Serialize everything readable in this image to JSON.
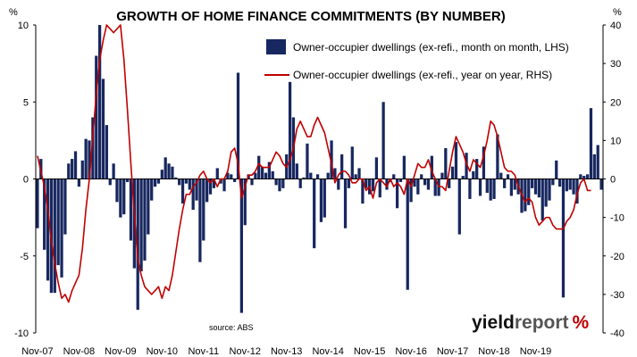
{
  "chart_data": {
    "type": "bar+line",
    "title": "GROWTH OF HOME FINANCE COMMITMENTS (BY NUMBER)",
    "left_axis": {
      "unit": "%",
      "ylim": [
        -10,
        10
      ],
      "ticks": [
        "10",
        "5",
        "0",
        "-5",
        "-10"
      ]
    },
    "right_axis": {
      "unit": "%",
      "ylim": [
        -40,
        40
      ],
      "ticks": [
        "40",
        "30",
        "20",
        "10",
        "0",
        "-10",
        "-20",
        "-30",
        "-40"
      ]
    },
    "x_tick_labels": [
      "Nov-07",
      "Nov-08",
      "Nov-09",
      "Nov-10",
      "Nov-11",
      "Nov-12",
      "Nov-13",
      "Nov-14",
      "Nov-15",
      "Nov-16",
      "Nov-17",
      "Nov-18",
      "Nov-19"
    ],
    "grid": false,
    "legend_position": "top-right",
    "series": [
      {
        "name": "Owner-occupier dwellings (ex-refi., month on month, LHS)",
        "type": "bar",
        "axis": "left",
        "color": "#17275f",
        "start": "Nov-07",
        "frequency": "monthly",
        "values": [
          -3.2,
          1.3,
          -4.6,
          -6.6,
          -7.4,
          -7.4,
          -5.6,
          -6.4,
          -3.6,
          1.0,
          1.3,
          1.8,
          -0.5,
          1.2,
          2.6,
          2.5,
          4.0,
          8.0,
          10.0,
          6.5,
          3.5,
          -0.4,
          1.0,
          -1.5,
          -2.5,
          -2.3,
          -0.2,
          -4.0,
          -5.8,
          -8.5,
          -6.0,
          -5.3,
          -3.6,
          -1.4,
          -0.5,
          -0.3,
          0.6,
          1.4,
          1.0,
          0.8,
          0.1,
          -0.4,
          -1.6,
          -0.3,
          -0.7,
          -2.0,
          -1.4,
          -5.4,
          -4.0,
          -1.5,
          -1.0,
          -0.6,
          0.7,
          -0.3,
          -0.8,
          0.4,
          0.3,
          -0.2,
          6.9,
          -8.7,
          -3.0,
          0.3,
          -0.4,
          0.4,
          1.5,
          0.8,
          0.4,
          1.1,
          0.5,
          -0.4,
          -0.8,
          -0.6,
          1.6,
          6.3,
          4.0,
          1.0,
          -0.6,
          0.1,
          2.3,
          0.4,
          -4.5,
          0.3,
          -2.8,
          -2.5,
          0.4,
          2.5,
          0.7,
          -0.7,
          1.6,
          -3.2,
          -0.6,
          2.1,
          0.3,
          0.7,
          -1.6,
          -0.6,
          -1.0,
          -0.8,
          1.4,
          -1.2,
          5.0,
          -0.7,
          -0.2,
          0.3,
          -1.9,
          -0.2,
          1.5,
          -7.2,
          -1.5,
          -0.5,
          -1.0,
          0.3,
          -0.4,
          -0.7,
          1.5,
          -1.1,
          -1.1,
          0.4,
          2.0,
          -0.6,
          0.8,
          2.4,
          -3.6,
          0.2,
          1.7,
          -1.3,
          0.5,
          1.3,
          -1.1,
          2.1,
          -0.9,
          -1.4,
          -1.3,
          2.9,
          0.4,
          -0.6,
          0.3,
          -1.1,
          -0.7,
          -1.0,
          -2.2,
          -2.1,
          -1.7,
          -0.6,
          -1.0,
          -1.2,
          -2.7,
          -1.8,
          -1.4,
          -0.4,
          1.2,
          -0.5,
          -7.7,
          -0.8,
          -0.7,
          -1.0,
          -1.6,
          0.3,
          0.2,
          0.3,
          4.6,
          1.6,
          2.2,
          -0.7
        ]
      },
      {
        "name": "Owner-occupier dwellings (ex-refi., year on year, RHS)",
        "type": "line",
        "axis": "right",
        "color": "#c00000",
        "start": "Nov-07",
        "frequency": "monthly",
        "values": [
          6,
          2,
          -2,
          -8,
          -16,
          -22,
          -27,
          -31,
          -30,
          -32,
          -29,
          -27,
          -25,
          -18,
          -8,
          0,
          11,
          22,
          31,
          36,
          40,
          39,
          38,
          39,
          40,
          31,
          18,
          4,
          -9,
          -21,
          -25,
          -28,
          -29,
          -30,
          -29,
          -28,
          -31,
          -28,
          -29,
          -25,
          -19,
          -13,
          -8,
          -4,
          -4,
          -2,
          -1,
          1,
          2,
          0,
          -1,
          0,
          -2,
          0,
          0,
          2,
          7,
          8,
          4,
          -5,
          -2,
          1,
          1,
          2,
          4,
          3,
          3,
          3,
          5,
          7,
          6,
          4,
          3,
          5,
          8,
          13,
          15,
          13,
          11,
          11,
          14,
          16,
          14,
          12,
          8,
          4,
          -1,
          1,
          2,
          2,
          1,
          -1,
          -1,
          0,
          0,
          -3,
          -2,
          -5,
          -1,
          0,
          -1,
          -2,
          0,
          -2,
          -1,
          -2,
          -4,
          0,
          -2,
          1,
          4,
          3,
          3,
          5,
          2,
          0,
          -2,
          -2,
          -3,
          2,
          7,
          11,
          9,
          7,
          4,
          2,
          5,
          4,
          3,
          6,
          10,
          15,
          14,
          11,
          7,
          3,
          2,
          2,
          1,
          -2,
          -4,
          -6,
          -5,
          -6,
          -10,
          -12,
          -11,
          -10,
          -10,
          -12,
          -13,
          -13,
          -13,
          -11,
          -10,
          -8,
          -4,
          -1,
          0,
          -3,
          -3
        ]
      }
    ]
  },
  "source_note": "source: ABS",
  "brand": {
    "word1": "yield",
    "word2": "report",
    "mark": "%"
  }
}
